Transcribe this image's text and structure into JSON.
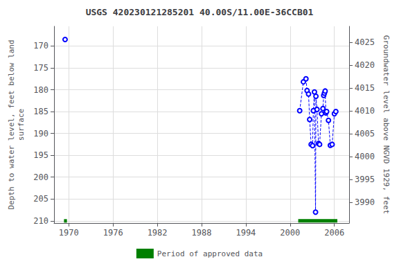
{
  "chart_data": {
    "type": "line",
    "title": "USGS 420230121285201 40.00S/11.00E-36CCB01",
    "ylabel": "Depth to water level, feet below land\nsurface",
    "y2label": "Groundwater level above NGVD 1929, feet",
    "xlim": [
      1968.0,
      2008.0
    ],
    "xticks": [
      1970,
      1976,
      1982,
      1988,
      1994,
      2000,
      2006
    ],
    "ylim": [
      210.5,
      165.5
    ],
    "yticks": [
      170,
      175,
      180,
      185,
      190,
      195,
      200,
      205,
      210
    ],
    "y2lim": [
      3985.5,
      4028.5
    ],
    "y2ticks": [
      3990,
      3995,
      4000,
      4005,
      4010,
      4015,
      4020,
      4025
    ],
    "grid": true,
    "legend": "bottom",
    "series": [
      {
        "type": "line",
        "color": "#0000FF",
        "marker": "circle",
        "line_style": "dashed",
        "x": [
          1969.5
        ],
        "values": [
          168.5
        ]
      },
      {
        "type": "line",
        "color": "#0000FF",
        "marker": "circle",
        "line_style": "dashed",
        "x": [
          2001.3,
          2001.8,
          2002.15,
          2002.3,
          2002.5,
          2002.65,
          2002.85,
          2003.05,
          2003.15,
          2003.3,
          2003.45,
          2003.5,
          2003.65,
          2003.85,
          2004.0,
          2004.25,
          2004.45,
          2004.55,
          2004.65,
          2004.75,
          2004.85,
          2004.95,
          2005.2,
          2005.45,
          2005.7,
          2006.0,
          2006.2
        ],
        "values": [
          184.8,
          178.2,
          177.5,
          180.2,
          181.0,
          186.8,
          192.5,
          192.8,
          184.8,
          180.5,
          208.0,
          181.5,
          184.5,
          192.3,
          192.5,
          185.5,
          184.3,
          181.3,
          180.8,
          180.3,
          185.3,
          185.0,
          187.0,
          192.7,
          192.5,
          185.5,
          185.0
        ]
      },
      {
        "type": "bar",
        "orientation": "horizontal",
        "name": "Period of approved data",
        "color": "#008000",
        "level": 210.0,
        "periods": [
          [
            1969.35,
            1969.75
          ],
          [
            2001.1,
            2006.4
          ]
        ]
      }
    ]
  }
}
